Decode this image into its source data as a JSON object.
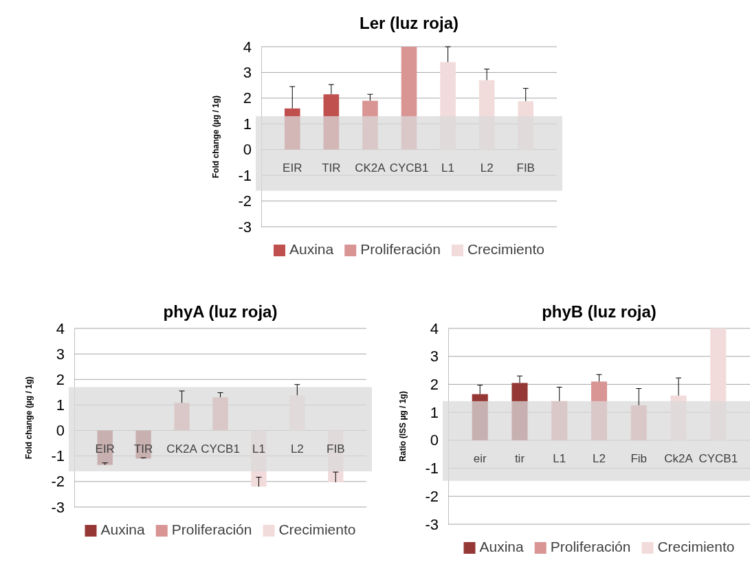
{
  "chart_data": [
    {
      "type": "bar",
      "title": "Ler (luz roja)",
      "ylabel": "Fold change (µg / 1g)",
      "categories": [
        "EIR",
        "TIR",
        "CK2A",
        "CYCB1",
        "L1",
        "L2",
        "FIB"
      ],
      "series": [
        {
          "name": "Auxina",
          "color": "#c0504d",
          "values": [
            1.6,
            2.15,
            null,
            null,
            null,
            null,
            null
          ],
          "errors": [
            [
              1.6,
              2.45
            ],
            [
              2.15,
              2.53
            ],
            null,
            null,
            null,
            null,
            null
          ]
        },
        {
          "name": "Proliferación",
          "color": "#d99594",
          "values": [
            null,
            null,
            1.9,
            4.0,
            null,
            null,
            null
          ],
          "errors": [
            null,
            null,
            [
              1.9,
              2.15
            ],
            null,
            null,
            null,
            null
          ]
        },
        {
          "name": "Crecimiento",
          "color": "#f2dcdb",
          "values": [
            null,
            null,
            null,
            null,
            3.4,
            2.7,
            1.88
          ],
          "errors": [
            null,
            null,
            null,
            null,
            [
              3.4,
              4.0
            ],
            [
              2.7,
              3.13
            ],
            [
              1.88,
              2.38
            ]
          ]
        }
      ],
      "ylim": [
        -3,
        4
      ],
      "yticks": [
        -3,
        -2,
        -1,
        0,
        1,
        2,
        3,
        4
      ],
      "grid": "y",
      "legend": "bottom",
      "bands": [
        {
          "axis": "y",
          "from": -1.6,
          "to": 1.3,
          "color": "#d9d9d9"
        }
      ]
    },
    {
      "type": "bar",
      "title": "phyA (luz roja)",
      "ylabel": "Fold change (µg / 1g)",
      "categories": [
        "EIR",
        "TIR",
        "CK2A",
        "CYCB1",
        "L1",
        "L2",
        "FIB"
      ],
      "series": [
        {
          "name": "Auxina",
          "color": "#953735",
          "values": [
            -1.35,
            -1.1,
            null,
            null,
            null,
            null,
            null
          ],
          "errors": [
            [
              -1.35,
              -1.27
            ],
            [
              -1.1,
              -1.07
            ],
            null,
            null,
            null,
            null,
            null
          ]
        },
        {
          "name": "Proliferación",
          "color": "#d99594",
          "values": [
            null,
            null,
            1.08,
            1.3,
            null,
            null,
            null
          ],
          "errors": [
            null,
            null,
            [
              1.08,
              1.55
            ],
            [
              1.3,
              1.48
            ],
            null,
            null,
            null
          ]
        },
        {
          "name": "Crecimiento",
          "color": "#f2dcdb",
          "values": [
            null,
            null,
            null,
            null,
            -2.2,
            1.38,
            -2.03
          ],
          "errors": [
            null,
            null,
            null,
            null,
            [
              -2.2,
              -1.83
            ],
            [
              1.38,
              1.8
            ],
            [
              -2.03,
              -1.63
            ]
          ]
        }
      ],
      "ylim": [
        -3,
        4
      ],
      "yticks": [
        -3,
        -2,
        -1,
        0,
        1,
        2,
        3,
        4
      ],
      "grid": "y",
      "legend": "bottom",
      "bands": [
        {
          "axis": "y",
          "from": -1.6,
          "to": 1.7,
          "color": "#d9d9d9"
        }
      ]
    },
    {
      "type": "bar",
      "title": "phyB (luz roja)",
      "ylabel": "Ratio (ISS µg / 1g)",
      "categories": [
        "eir",
        "tir",
        "L1",
        "L2",
        "Fib",
        "Ck2A",
        "CYCB1"
      ],
      "series": [
        {
          "name": "Auxina",
          "color": "#953735",
          "values": [
            1.65,
            2.05,
            null,
            null,
            null,
            null,
            null
          ],
          "errors": [
            [
              1.65,
              1.97
            ],
            [
              2.05,
              2.3
            ],
            null,
            null,
            null,
            null,
            null
          ]
        },
        {
          "name": "Proliferación",
          "color": "#d99594",
          "values": [
            null,
            null,
            1.4,
            2.1,
            1.25,
            null,
            null
          ],
          "errors": [
            null,
            null,
            [
              1.4,
              1.9
            ],
            [
              2.1,
              2.35
            ],
            [
              1.25,
              1.85
            ],
            null,
            null
          ]
        },
        {
          "name": "Crecimiento",
          "color": "#f2dcdb",
          "values": [
            null,
            null,
            null,
            null,
            null,
            1.6,
            4.0
          ],
          "errors": [
            null,
            null,
            null,
            null,
            null,
            [
              1.6,
              2.23
            ],
            null
          ]
        }
      ],
      "ylim": [
        -3,
        4
      ],
      "yticks": [
        -3,
        -2,
        -1,
        0,
        1,
        2,
        3,
        4
      ],
      "grid": "y",
      "legend": "bottom",
      "bands": [
        {
          "axis": "y",
          "from": -1.45,
          "to": 1.4,
          "color": "#d9d9d9"
        }
      ]
    }
  ]
}
